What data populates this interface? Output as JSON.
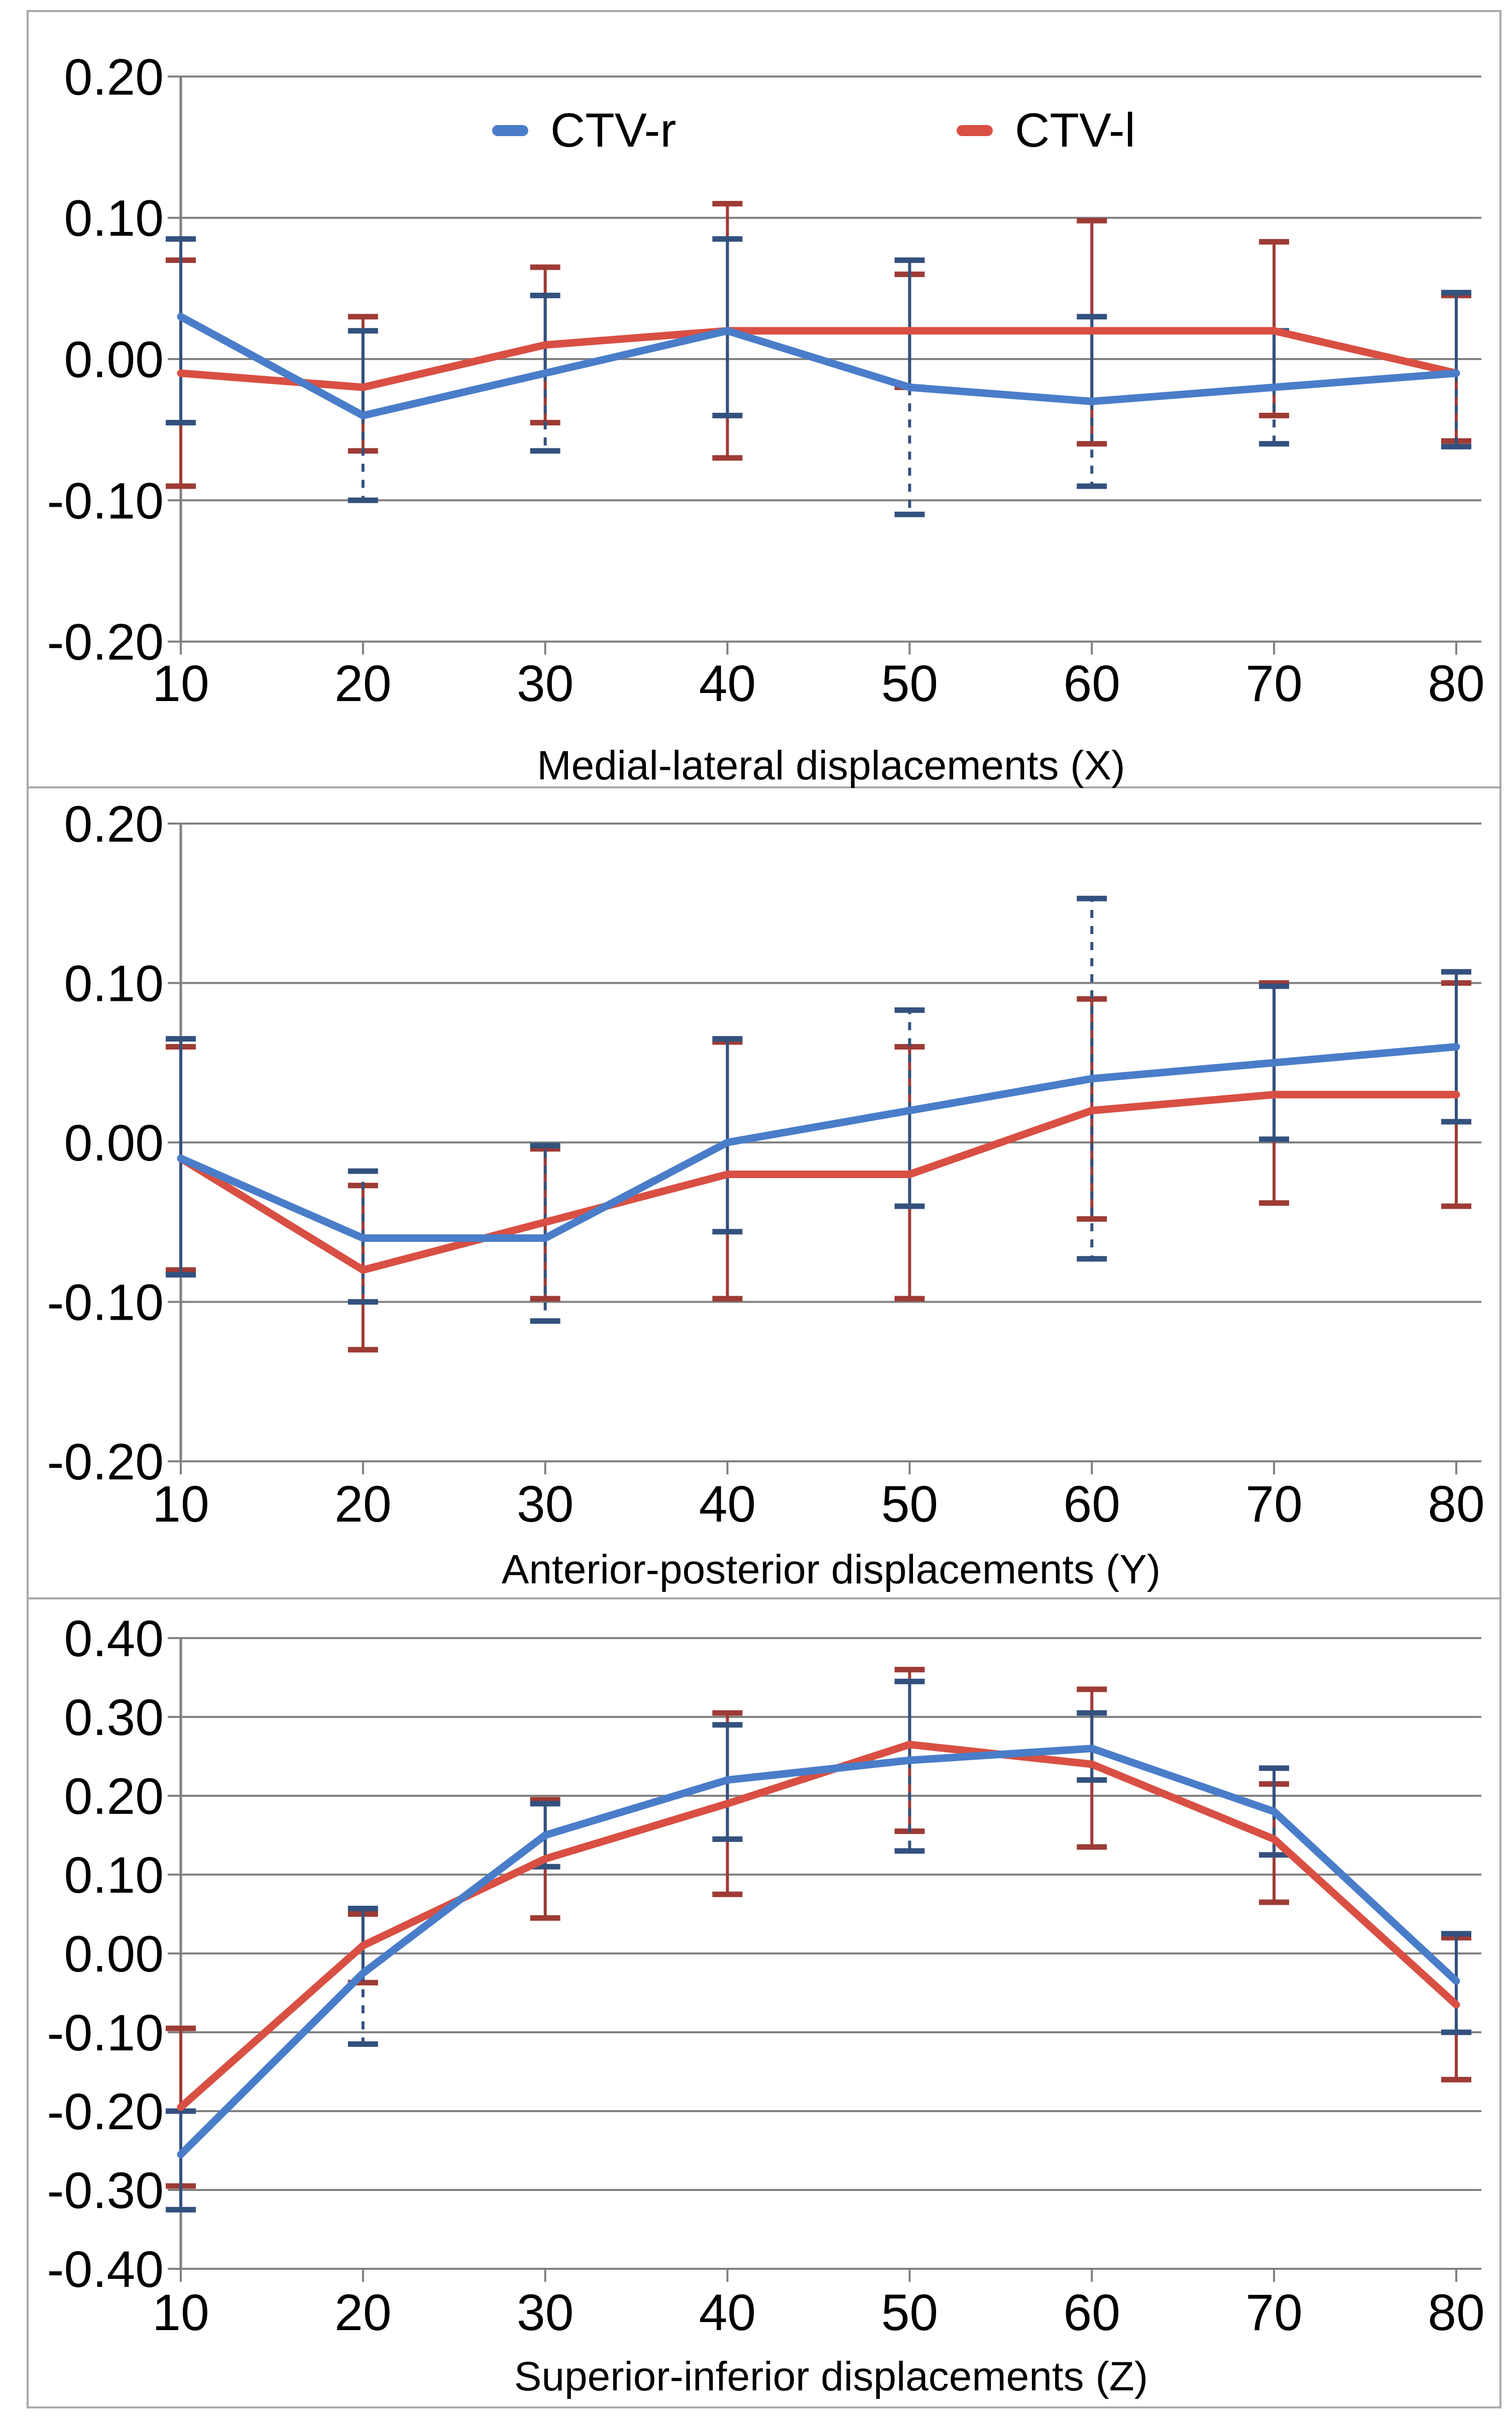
{
  "legend": {
    "items": [
      {
        "label": "CTV-r",
        "color": "#4a7dc9"
      },
      {
        "label": "CTV-l",
        "color": "#d94f43"
      }
    ]
  },
  "colors": {
    "blue_line": "#4a7dc9",
    "blue_error": "#33517e",
    "red_line": "#d94f43",
    "red_error": "#9e3b35",
    "gridline": "#808080",
    "panel_border": "#a9a9a9",
    "background": "#ffffff"
  },
  "chart_data": [
    {
      "type": "line",
      "title": "Medial-lateral displacements (X)",
      "x": [
        10,
        20,
        30,
        40,
        50,
        60,
        70,
        80
      ],
      "ylim": [
        -0.2,
        0.2
      ],
      "ytick_step": 0.1,
      "ytick_labels": [
        "0.20",
        "0.10",
        "0.00",
        "-0.10",
        "-0.20"
      ],
      "grid": true,
      "legend_position": "top-center",
      "series": [
        {
          "name": "CTV-l",
          "color": "#d94f43",
          "error_color": "#9e3b35",
          "values": [
            -0.01,
            -0.02,
            0.01,
            0.02,
            0.02,
            0.02,
            0.02,
            -0.01
          ],
          "err_up": [
            0.07,
            0.03,
            0.065,
            0.11,
            0.06,
            0.098,
            0.083,
            0.045
          ],
          "err_dn": [
            -0.09,
            -0.065,
            -0.045,
            -0.07,
            -0.02,
            -0.06,
            -0.04,
            -0.058
          ],
          "dash_up": [
            false,
            false,
            false,
            false,
            false,
            false,
            false,
            false
          ],
          "dash_dn": [
            false,
            false,
            false,
            false,
            false,
            false,
            false,
            false
          ]
        },
        {
          "name": "CTV-r",
          "color": "#4a7dc9",
          "error_color": "#33517e",
          "values": [
            0.03,
            -0.04,
            -0.01,
            0.02,
            -0.02,
            -0.03,
            -0.02,
            -0.01
          ],
          "err_up": [
            0.085,
            0.02,
            0.045,
            0.085,
            0.07,
            0.03,
            0.02,
            0.047
          ],
          "err_dn": [
            -0.045,
            -0.1,
            -0.065,
            -0.04,
            -0.11,
            -0.09,
            -0.06,
            -0.062
          ],
          "dash_up": [
            false,
            false,
            false,
            false,
            false,
            false,
            false,
            false
          ],
          "dash_dn": [
            false,
            true,
            true,
            false,
            true,
            true,
            true,
            true
          ]
        }
      ]
    },
    {
      "type": "line",
      "title": "Anterior-posterior displacements (Y)",
      "x": [
        10,
        20,
        30,
        40,
        50,
        60,
        70,
        80
      ],
      "ylim": [
        -0.2,
        0.2
      ],
      "ytick_step": 0.1,
      "ytick_labels": [
        "0.20",
        "0.10",
        "0.00",
        "-0.10",
        "-0.20"
      ],
      "grid": true,
      "series": [
        {
          "name": "CTV-l",
          "color": "#d94f43",
          "error_color": "#9e3b35",
          "values": [
            -0.01,
            -0.08,
            -0.05,
            -0.02,
            -0.02,
            0.02,
            0.03,
            0.03
          ],
          "err_up": [
            0.06,
            -0.027,
            -0.004,
            0.063,
            0.06,
            0.09,
            0.1,
            0.1
          ],
          "err_dn": [
            -0.08,
            -0.13,
            -0.098,
            -0.098,
            -0.098,
            -0.048,
            -0.038,
            -0.04
          ],
          "dash_up": [
            false,
            false,
            false,
            false,
            false,
            false,
            false,
            false
          ],
          "dash_dn": [
            false,
            false,
            false,
            false,
            false,
            false,
            false,
            false
          ]
        },
        {
          "name": "CTV-r",
          "color": "#4a7dc9",
          "error_color": "#33517e",
          "values": [
            -0.01,
            -0.06,
            -0.06,
            0.0,
            0.02,
            0.04,
            0.05,
            0.06
          ],
          "err_up": [
            0.065,
            -0.018,
            -0.002,
            0.065,
            0.083,
            0.153,
            0.098,
            0.107
          ],
          "err_dn": [
            -0.083,
            -0.1,
            -0.112,
            -0.056,
            -0.04,
            -0.073,
            0.002,
            0.013
          ],
          "dash_up": [
            false,
            true,
            true,
            false,
            true,
            true,
            false,
            false
          ],
          "dash_dn": [
            false,
            true,
            true,
            false,
            false,
            true,
            false,
            false
          ]
        }
      ]
    },
    {
      "type": "line",
      "title": "Superior-inferior displacements (Z)",
      "x": [
        10,
        20,
        30,
        40,
        50,
        60,
        70,
        80
      ],
      "ylim": [
        -0.4,
        0.4
      ],
      "ytick_step": 0.1,
      "ytick_labels": [
        "0.40",
        "0.30",
        "0.20",
        "0.10",
        "0.00",
        "-0.10",
        "-0.20",
        "-0.30",
        "-0.40"
      ],
      "grid": true,
      "series": [
        {
          "name": "CTV-l",
          "color": "#d94f43",
          "error_color": "#9e3b35",
          "values": [
            -0.195,
            0.01,
            0.12,
            0.19,
            0.265,
            0.24,
            0.145,
            -0.065
          ],
          "err_up": [
            -0.095,
            0.05,
            0.195,
            0.305,
            0.36,
            0.335,
            0.215,
            0.02
          ],
          "err_dn": [
            -0.295,
            -0.037,
            0.045,
            0.075,
            0.155,
            0.135,
            0.065,
            -0.16
          ],
          "dash_up": [
            false,
            false,
            false,
            false,
            false,
            false,
            false,
            false
          ],
          "dash_dn": [
            false,
            false,
            false,
            false,
            false,
            false,
            false,
            false
          ]
        },
        {
          "name": "CTV-r",
          "color": "#4a7dc9",
          "error_color": "#33517e",
          "values": [
            -0.255,
            -0.025,
            0.15,
            0.22,
            0.245,
            0.26,
            0.18,
            -0.035
          ],
          "err_up": [
            -0.2,
            0.057,
            0.19,
            0.29,
            0.345,
            0.305,
            0.235,
            0.025
          ],
          "err_dn": [
            -0.325,
            -0.115,
            0.11,
            0.145,
            0.13,
            0.22,
            0.125,
            -0.1
          ],
          "dash_up": [
            false,
            false,
            false,
            false,
            false,
            false,
            false,
            false
          ],
          "dash_dn": [
            false,
            true,
            false,
            false,
            true,
            false,
            true,
            false
          ]
        }
      ]
    }
  ]
}
